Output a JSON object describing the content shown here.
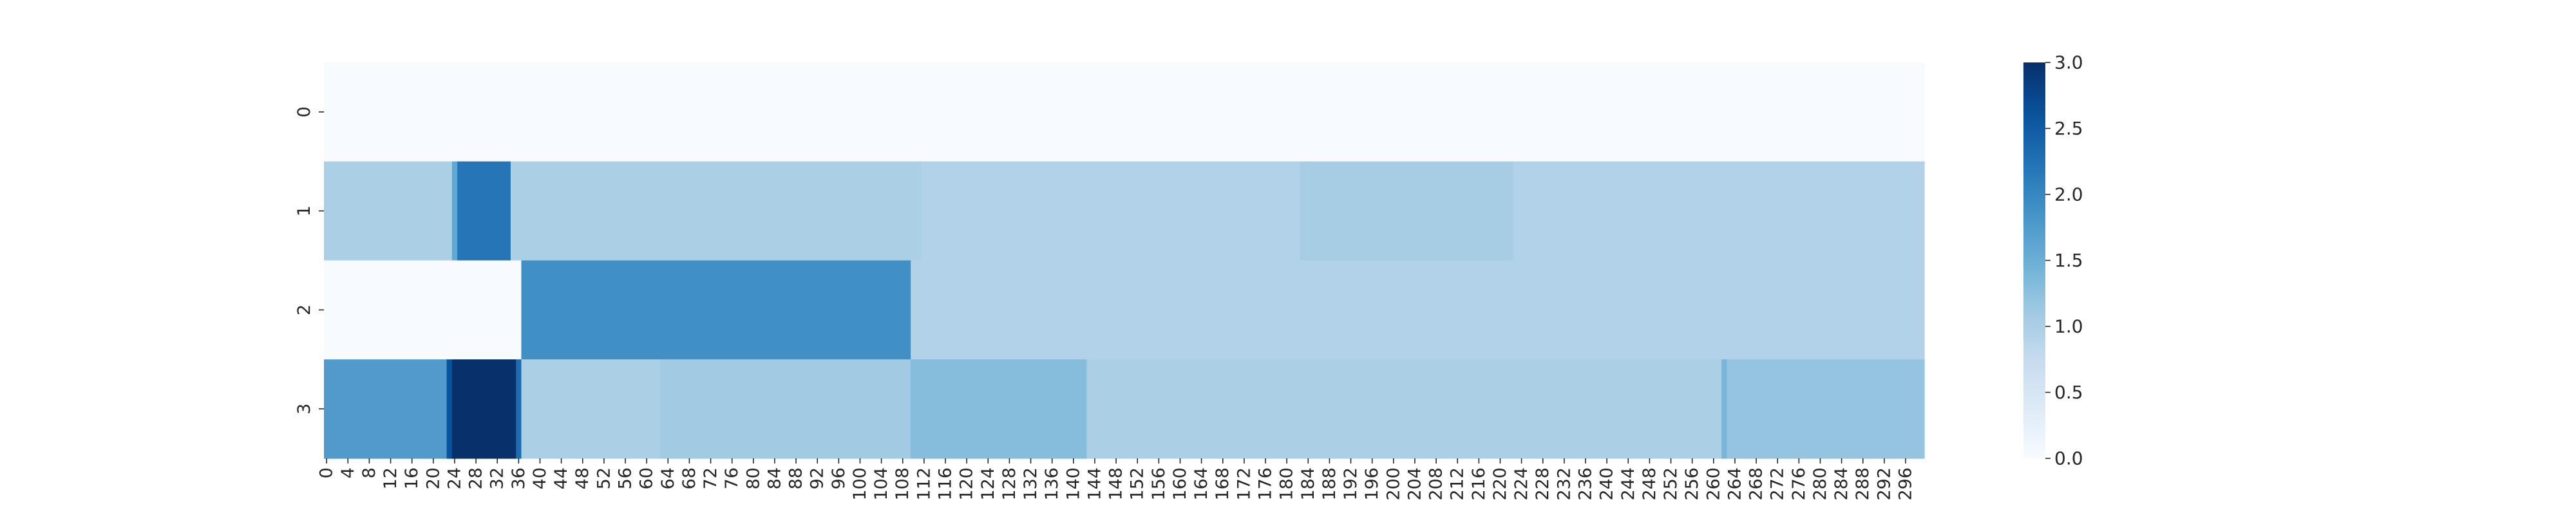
{
  "chart_data": {
    "type": "heatmap",
    "title": "",
    "xlabel": "",
    "ylabel": "",
    "colormap": "Blues",
    "vmin": 0.0,
    "vmax": 3.0,
    "n_columns": 300,
    "x_tick_labels": [
      "0",
      "4",
      "8",
      "12",
      "16",
      "20",
      "24",
      "28",
      "32",
      "36",
      "40",
      "44",
      "48",
      "52",
      "56",
      "60",
      "64",
      "68",
      "72",
      "76",
      "80",
      "84",
      "88",
      "92",
      "96",
      "100",
      "104",
      "108",
      "112",
      "116",
      "120",
      "124",
      "128",
      "132",
      "136",
      "140",
      "144",
      "148",
      "152",
      "156",
      "160",
      "164",
      "168",
      "172",
      "176",
      "180",
      "184",
      "188",
      "192",
      "196",
      "200",
      "204",
      "208",
      "212",
      "216",
      "220",
      "224",
      "228",
      "232",
      "236",
      "240",
      "244",
      "248",
      "252",
      "256",
      "260",
      "264",
      "268",
      "272",
      "276",
      "280",
      "284",
      "288",
      "292",
      "296"
    ],
    "rows": [
      {
        "label": "0",
        "segments": [
          {
            "start": 0,
            "end": 300,
            "value": 0.0
          }
        ]
      },
      {
        "label": "1",
        "segments": [
          {
            "start": 0,
            "end": 24,
            "value": 1.0
          },
          {
            "start": 24,
            "end": 25,
            "value": 1.6
          },
          {
            "start": 25,
            "end": 35,
            "value": 2.2
          },
          {
            "start": 35,
            "end": 112,
            "value": 1.0
          },
          {
            "start": 112,
            "end": 183,
            "value": 0.95
          },
          {
            "start": 183,
            "end": 223,
            "value": 1.05
          },
          {
            "start": 223,
            "end": 300,
            "value": 0.95
          }
        ]
      },
      {
        "label": "2",
        "segments": [
          {
            "start": 0,
            "end": 37,
            "value": 0.0
          },
          {
            "start": 37,
            "end": 110,
            "value": 1.9
          },
          {
            "start": 110,
            "end": 300,
            "value": 0.95
          }
        ]
      },
      {
        "label": "3",
        "segments": [
          {
            "start": 0,
            "end": 23,
            "value": 1.75
          },
          {
            "start": 23,
            "end": 24,
            "value": 2.6
          },
          {
            "start": 24,
            "end": 36,
            "value": 3.0
          },
          {
            "start": 36,
            "end": 37,
            "value": 2.3
          },
          {
            "start": 37,
            "end": 63,
            "value": 1.0
          },
          {
            "start": 63,
            "end": 110,
            "value": 1.1
          },
          {
            "start": 110,
            "end": 143,
            "value": 1.3
          },
          {
            "start": 143,
            "end": 262,
            "value": 1.0
          },
          {
            "start": 262,
            "end": 263,
            "value": 1.4
          },
          {
            "start": 263,
            "end": 300,
            "value": 1.2
          }
        ]
      }
    ],
    "colorbar": {
      "ticks": [
        "0.0",
        "0.5",
        "1.0",
        "1.5",
        "2.0",
        "2.5",
        "3.0"
      ]
    }
  }
}
